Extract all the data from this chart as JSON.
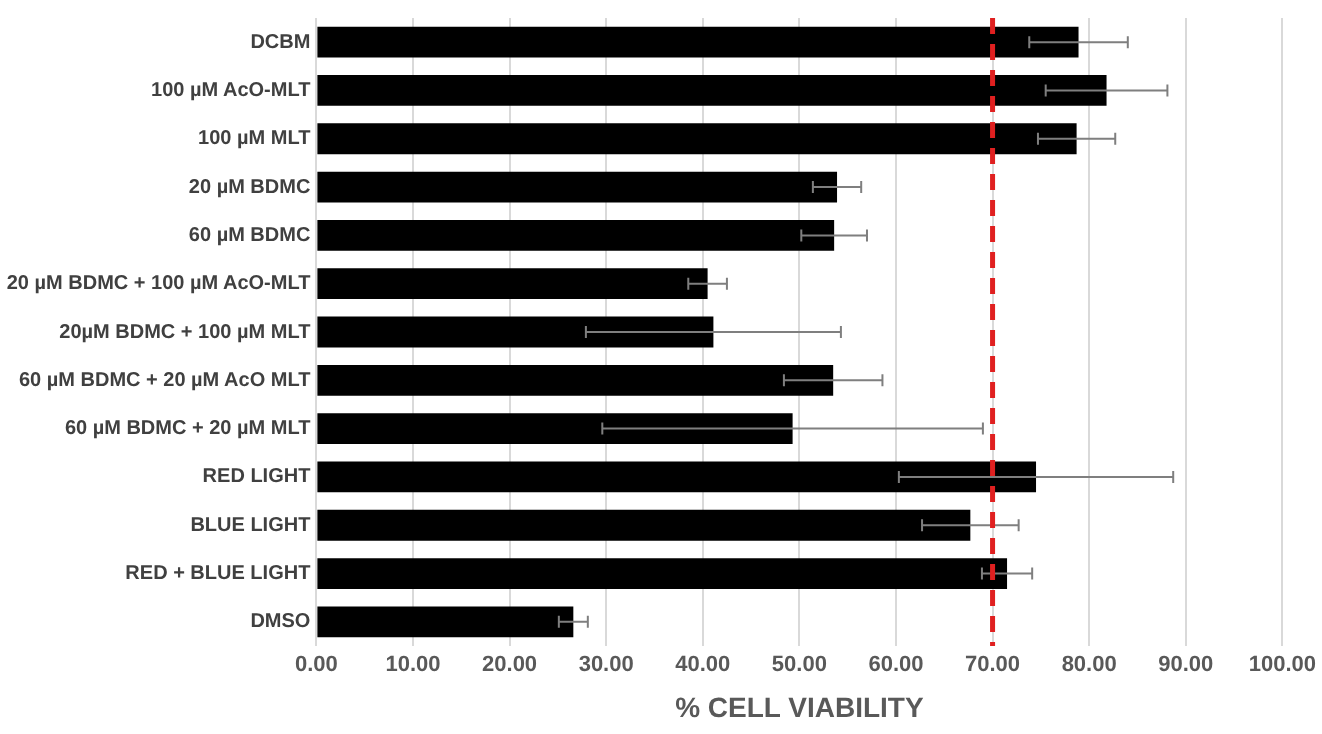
{
  "chart_data": {
    "type": "bar",
    "orientation": "horizontal",
    "xlabel": "% CELL VIABILITY",
    "categories": [
      "DCBM",
      "100 µM AcO-MLT",
      "100 µM MLT",
      "20 µM BDMC",
      "60 µM BDMC",
      "20 µM BDMC + 100 µM AcO-MLT",
      "20µM BDMC + 100 µM MLT",
      "60 µM BDMC + 20 µM AcO MLT",
      "60 µM BDMC + 20 µM MLT",
      "RED LIGHT",
      "BLUE LIGHT",
      "RED + BLUE LIGHT",
      "DMSO"
    ],
    "values": [
      78.9,
      81.8,
      78.7,
      53.9,
      53.6,
      40.5,
      41.1,
      53.5,
      49.3,
      74.5,
      67.7,
      71.5,
      26.6
    ],
    "errors": [
      5.1,
      6.3,
      4.0,
      2.5,
      3.4,
      2.0,
      13.2,
      5.1,
      19.7,
      14.2,
      5.0,
      2.6,
      1.5
    ],
    "color": "#000000",
    "xlim": [
      0,
      100
    ],
    "xticks": [
      {
        "value": 0,
        "label": "0.00"
      },
      {
        "value": 10,
        "label": "10.00"
      },
      {
        "value": 20,
        "label": "20.00"
      },
      {
        "value": 30,
        "label": "30.00"
      },
      {
        "value": 40,
        "label": "40.00"
      },
      {
        "value": 50,
        "label": "50.00"
      },
      {
        "value": 60,
        "label": "60.00"
      },
      {
        "value": 70,
        "label": "70.00"
      },
      {
        "value": 80,
        "label": "80.00"
      },
      {
        "value": 90,
        "label": "90.00"
      },
      {
        "value": 100,
        "label": "100.00"
      }
    ],
    "ref_lines": [
      {
        "axis": "x",
        "value": 70,
        "color": "#e02020",
        "line_style": "dashed"
      }
    ],
    "grid": "x",
    "legend": false
  }
}
